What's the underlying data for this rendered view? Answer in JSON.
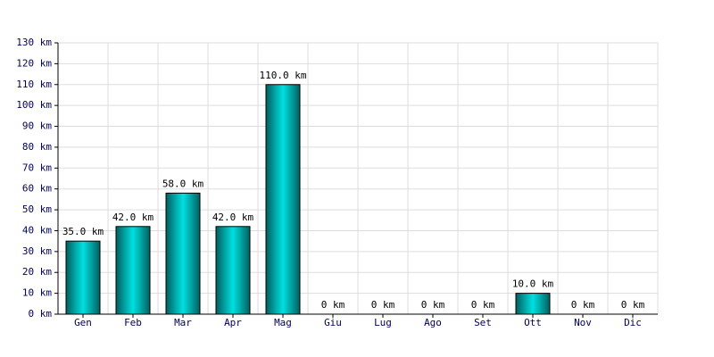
{
  "chart_data": {
    "type": "bar",
    "categories": [
      "Gen",
      "Feb",
      "Mar",
      "Apr",
      "Mag",
      "Giu",
      "Lug",
      "Ago",
      "Set",
      "Ott",
      "Nov",
      "Dic"
    ],
    "values": [
      35,
      42,
      58,
      42,
      110,
      0,
      0,
      0,
      0,
      10,
      0,
      0
    ],
    "value_labels": [
      "35.0 km",
      "42.0 km",
      "58.0 km",
      "42.0 km",
      "110.0 km",
      "0 km",
      "0 km",
      "0 km",
      "0 km",
      "10.0 km",
      "0 km",
      "0 km"
    ],
    "color": "#00e0e0",
    "ylim": [
      0,
      130
    ],
    "yticks": [
      {
        "value": 0,
        "label": "0 km"
      },
      {
        "value": 10,
        "label": "10 km"
      },
      {
        "value": 20,
        "label": "20 km"
      },
      {
        "value": 30,
        "label": "30 km"
      },
      {
        "value": 40,
        "label": "40 km"
      },
      {
        "value": 50,
        "label": "50 km"
      },
      {
        "value": 60,
        "label": "60 km"
      },
      {
        "value": 70,
        "label": "70 km"
      },
      {
        "value": 80,
        "label": "80 km"
      },
      {
        "value": 90,
        "label": "90 km"
      },
      {
        "value": 100,
        "label": "100 km"
      },
      {
        "value": 110,
        "label": "110 km"
      },
      {
        "value": 120,
        "label": "120 km"
      },
      {
        "value": 130,
        "label": "130 km"
      }
    ],
    "grid": true
  }
}
